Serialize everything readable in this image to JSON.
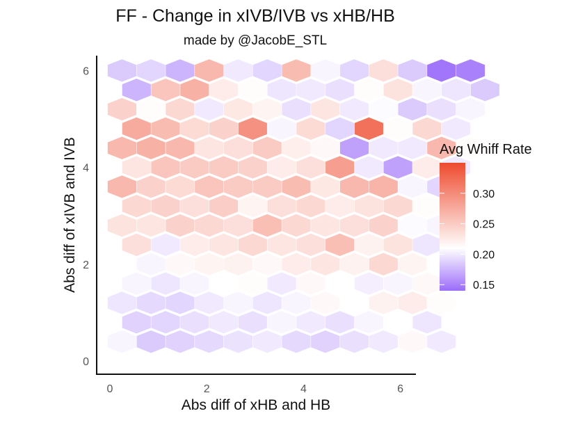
{
  "chart_data": {
    "type": "heatmap",
    "subtype": "hexbin",
    "title": "FF - Change in xIVB/IVB vs xHB/HB",
    "subtitle": "made by @JacobE_STL",
    "xlabel": "Abs diff of xHB and HB",
    "ylabel": "Abs diff of xIVB and IVB",
    "xlim": [
      -0.3,
      6.3
    ],
    "ylim": [
      -0.3,
      6.3
    ],
    "x_ticks": [
      0,
      2,
      4,
      6
    ],
    "y_ticks": [
      0,
      2,
      4,
      6
    ],
    "x_tick_labels": [
      "0",
      "2",
      "4",
      "6"
    ],
    "y_tick_labels": [
      "0",
      "2",
      "4",
      "6"
    ],
    "grid": false,
    "legend": {
      "title": "Avg Whiff Rate",
      "position": "right",
      "range": [
        0.14,
        0.35
      ],
      "ticks": [
        0.3,
        0.25,
        0.2,
        0.15
      ],
      "tick_labels": [
        "0.30",
        "0.25",
        "0.20",
        "0.15"
      ],
      "colors": {
        "low": "#9b6cfa",
        "mid": "#ffffff",
        "high": "#ee4a2e"
      },
      "midpoint": 0.21
    },
    "hex_columns": {
      "even_x": [
        0.25,
        0.85,
        1.45,
        2.05,
        2.65,
        3.25,
        3.85,
        4.45,
        5.05,
        5.65
      ],
      "odd_x": [
        0.55,
        1.15,
        1.75,
        2.35,
        2.95,
        3.55,
        4.15,
        4.75,
        5.35,
        5.95
      ],
      "last_x": 6.25
    },
    "rows": [
      {
        "y": 0.4,
        "values": [
          0.205,
          0.185,
          0.188,
          0.192,
          0.196,
          0.2,
          0.192,
          0.188,
          0.195,
          0.2,
          0.215,
          0.2
        ]
      },
      {
        "y": 0.8,
        "values": [
          0.188,
          0.19,
          0.195,
          0.2,
          0.195,
          0.205,
          0.2,
          0.195,
          0.205,
          0.21,
          0.198
        ]
      },
      {
        "y": 1.2,
        "values": [
          0.198,
          0.192,
          0.19,
          0.2,
          0.205,
          0.198,
          0.205,
          0.215,
          0.21,
          0.22,
          0.225,
          0.212
        ]
      },
      {
        "y": 1.6,
        "values": [
          0.205,
          0.198,
          0.205,
          0.21,
          0.212,
          0.2,
          0.215,
          0.21,
          0.202,
          0.205,
          0.215
        ]
      },
      {
        "y": 2.0,
        "values": [
          0.21,
          0.205,
          0.215,
          0.218,
          0.22,
          0.215,
          0.225,
          0.23,
          0.22,
          0.24,
          0.218,
          0.21
        ]
      },
      {
        "y": 2.4,
        "values": [
          0.235,
          0.2,
          0.225,
          0.23,
          0.24,
          0.23,
          0.235,
          0.26,
          0.22,
          0.232,
          0.198
        ]
      },
      {
        "y": 2.8,
        "values": [
          0.232,
          0.23,
          0.245,
          0.24,
          0.235,
          0.26,
          0.24,
          0.23,
          0.235,
          0.245,
          0.208,
          0.205
        ]
      },
      {
        "y": 3.2,
        "values": [
          0.24,
          0.245,
          0.235,
          0.248,
          0.218,
          0.235,
          0.24,
          0.225,
          0.232,
          0.24,
          0.212
        ]
      },
      {
        "y": 3.6,
        "values": [
          0.265,
          0.245,
          0.238,
          0.255,
          0.25,
          0.25,
          0.262,
          0.228,
          0.265,
          0.268,
          0.205,
          0.19
        ]
      },
      {
        "y": 4.0,
        "values": [
          0.23,
          0.255,
          0.25,
          0.25,
          0.245,
          0.225,
          0.235,
          0.285,
          0.2,
          0.165,
          0.225,
          0.2
        ]
      },
      {
        "y": 4.4,
        "values": [
          0.265,
          0.27,
          0.265,
          0.23,
          0.235,
          0.25,
          0.222,
          0.215,
          0.165,
          0.2,
          0.2,
          0.265,
          0.212
        ]
      },
      {
        "y": 4.8,
        "values": [
          0.275,
          0.262,
          0.238,
          0.245,
          0.295,
          0.205,
          0.238,
          0.19,
          0.32,
          0.212,
          0.24,
          0.2
        ]
      },
      {
        "y": 5.2,
        "values": [
          0.245,
          0.212,
          0.24,
          0.2,
          0.228,
          0.218,
          0.195,
          0.23,
          0.2,
          0.208,
          0.185,
          0.195,
          0.205
        ]
      },
      {
        "y": 5.6,
        "values": [
          0.175,
          0.255,
          0.27,
          0.225,
          0.212,
          0.198,
          0.2,
          0.195,
          0.212,
          0.232,
          0.205,
          0.198,
          0.185
        ]
      },
      {
        "y": 6.0,
        "values": [
          0.185,
          0.19,
          0.175,
          0.265,
          0.2,
          0.19,
          0.262,
          0.205,
          0.19,
          0.235,
          0.185,
          0.145,
          0.15
        ]
      }
    ]
  }
}
